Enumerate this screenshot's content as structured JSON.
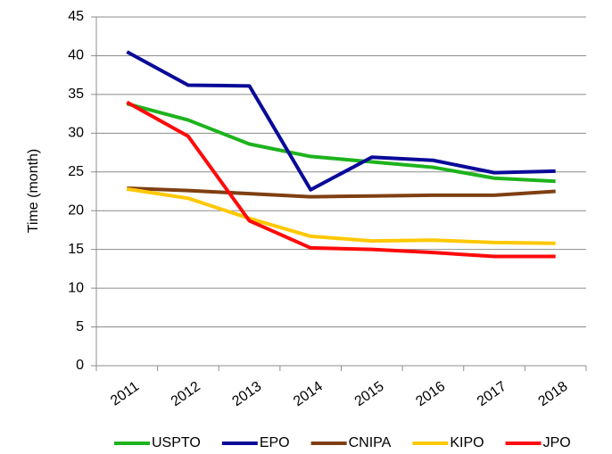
{
  "chart_data": {
    "type": "line",
    "y_label": "Time (month)",
    "categories": [
      "2011",
      "2012",
      "2013",
      "2014",
      "2015",
      "2016",
      "2017",
      "2018"
    ],
    "series": [
      {
        "name": "USPTO",
        "color": "#1db31d",
        "values": [
          33.8,
          31.7,
          28.6,
          27.0,
          26.3,
          25.6,
          24.2,
          23.8
        ]
      },
      {
        "name": "EPO",
        "color": "#0a0a99",
        "values": [
          40.5,
          36.2,
          36.1,
          22.7,
          26.9,
          26.5,
          24.9,
          25.1
        ]
      },
      {
        "name": "CNIPA",
        "color": "#7f3f12",
        "values": [
          22.9,
          22.6,
          22.2,
          21.8,
          21.9,
          22.0,
          22.0,
          22.5
        ]
      },
      {
        "name": "KIPO",
        "color": "#ffc800",
        "values": [
          22.8,
          21.6,
          19.0,
          16.7,
          16.1,
          16.2,
          15.9,
          15.8
        ]
      },
      {
        "name": "JPO",
        "color": "#ff0a0a",
        "values": [
          34.0,
          29.6,
          18.7,
          15.2,
          15.0,
          14.6,
          14.1,
          14.1
        ]
      }
    ],
    "ylim": [
      0,
      45
    ],
    "yticks": [
      0,
      5,
      10,
      15,
      20,
      25,
      30,
      35,
      40,
      45
    ],
    "grid": true,
    "legend": "bottom"
  }
}
